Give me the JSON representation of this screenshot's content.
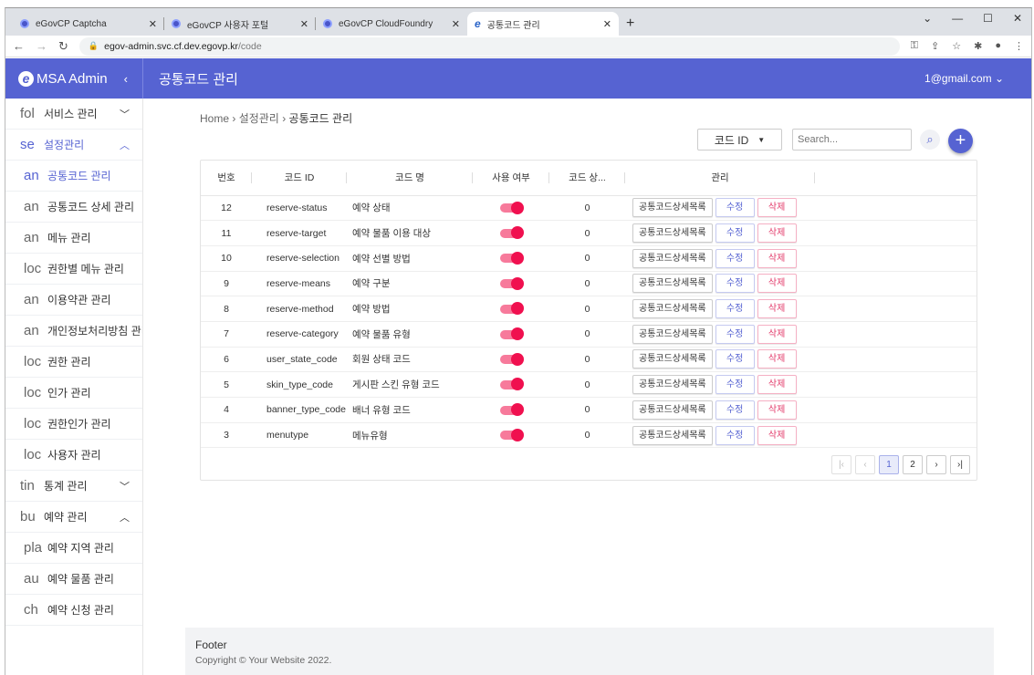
{
  "browser": {
    "tabs": [
      {
        "title": "eGovCP Captcha"
      },
      {
        "title": "eGovCP 사용자 포털"
      },
      {
        "title": "eGovCP CloudFoundry"
      },
      {
        "title": "공통코드 관리",
        "active": true
      }
    ],
    "url_host": "egov-admin.svc.cf.dev.egovp.kr",
    "url_path": "/code"
  },
  "header": {
    "brand": "MSA Admin",
    "title": "공통코드 관리",
    "user": "1@gmail.com"
  },
  "sidebar": {
    "items": [
      {
        "icon": "fol",
        "label": "서비스 관리",
        "level": "top",
        "caret": "down"
      },
      {
        "icon": "se",
        "label": "설정관리",
        "level": "top",
        "caret": "up",
        "active": true
      },
      {
        "icon": "an",
        "label": "공통코드 관리",
        "level": "sub",
        "active": true
      },
      {
        "icon": "an",
        "label": "공통코드 상세 관리",
        "level": "sub"
      },
      {
        "icon": "an",
        "label": "메뉴 관리",
        "level": "sub"
      },
      {
        "icon": "loc",
        "label": "권한별 메뉴 관리",
        "level": "sub"
      },
      {
        "icon": "an",
        "label": "이용약관 관리",
        "level": "sub"
      },
      {
        "icon": "an",
        "label": "개인정보처리방침 관리",
        "level": "sub"
      },
      {
        "icon": "loc",
        "label": "권한 관리",
        "level": "sub"
      },
      {
        "icon": "loc",
        "label": "인가 관리",
        "level": "sub"
      },
      {
        "icon": "loc",
        "label": "권한인가 관리",
        "level": "sub"
      },
      {
        "icon": "loc",
        "label": "사용자 관리",
        "level": "sub"
      },
      {
        "icon": "tin",
        "label": "통계 관리",
        "level": "top",
        "caret": "down"
      },
      {
        "icon": "bu",
        "label": "예약 관리",
        "level": "top",
        "caret": "up"
      },
      {
        "icon": "pla",
        "label": "예약 지역 관리",
        "level": "sub"
      },
      {
        "icon": "au",
        "label": "예약 물품 관리",
        "level": "sub"
      },
      {
        "icon": "ch",
        "label": "예약 신청 관리",
        "level": "sub"
      }
    ]
  },
  "breadcrumb": [
    "Home",
    "설정관리",
    "공통코드 관리"
  ],
  "filter": {
    "selected": "코드 ID",
    "search_placeholder": "Search..."
  },
  "table": {
    "columns": [
      "번호",
      "코드 ID",
      "코드 명",
      "사용 여부",
      "코드 상...",
      "관리"
    ],
    "rows": [
      {
        "no": "12",
        "id": "reserve-status",
        "name": "예약 상태",
        "use": true,
        "count": "0"
      },
      {
        "no": "11",
        "id": "reserve-target",
        "name": "예약 물품 이용 대상",
        "use": true,
        "count": "0"
      },
      {
        "no": "10",
        "id": "reserve-selection",
        "name": "예약 선별 방법",
        "use": true,
        "count": "0"
      },
      {
        "no": "9",
        "id": "reserve-means",
        "name": "예약 구분",
        "use": true,
        "count": "0"
      },
      {
        "no": "8",
        "id": "reserve-method",
        "name": "예약 방법",
        "use": true,
        "count": "0"
      },
      {
        "no": "7",
        "id": "reserve-category",
        "name": "예약 물품 유형",
        "use": true,
        "count": "0"
      },
      {
        "no": "6",
        "id": "user_state_code",
        "name": "회원 상태 코드",
        "use": true,
        "count": "0"
      },
      {
        "no": "5",
        "id": "skin_type_code",
        "name": "게시판 스킨 유형 코드",
        "use": true,
        "count": "0"
      },
      {
        "no": "4",
        "id": "banner_type_code",
        "name": "배너 유형 코드",
        "use": true,
        "count": "0"
      },
      {
        "no": "3",
        "id": "menutype",
        "name": "메뉴유형",
        "use": true,
        "count": "0"
      }
    ],
    "actions": {
      "detail": "공통코드상세목록",
      "edit": "수정",
      "delete": "삭제"
    }
  },
  "pagination": {
    "pages": [
      "1",
      "2"
    ],
    "current": "1"
  },
  "footer": {
    "title": "Footer",
    "copyright": "Copyright © Your Website 2022."
  },
  "colors": {
    "primary": "#5663d2",
    "toggle": "#f0104f",
    "delete": "#e33a6a"
  }
}
